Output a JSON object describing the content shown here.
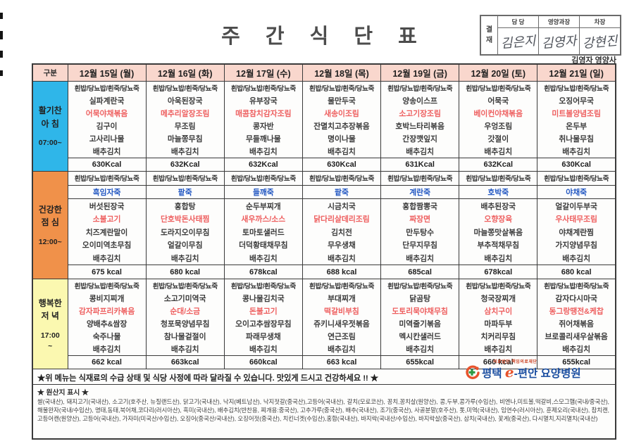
{
  "title": "주 간 식 단 표",
  "approval": {
    "stamp_label": "결재",
    "columns": [
      "담 당",
      "영양과장",
      "차장"
    ],
    "signatures": [
      "김은지",
      "김영자",
      "강현진"
    ],
    "dietitian": "김영자 영양사"
  },
  "table": {
    "corner_label": "구분",
    "day_headers": [
      "12월 15일 (월)",
      "12월 16일 (화)",
      "12월 17일 (수)",
      "12월 18일 (목)",
      "12월 19일 (금)",
      "12월 20일 (토)",
      "12월 21일 (일)"
    ],
    "rice_line": "흰밥/당뇨밥/흰죽/당뇨죽",
    "meals": [
      {
        "id": "breakfast",
        "label_lines": [
          "활기찬",
          "아 침"
        ],
        "time_lines": [
          "07:00~"
        ],
        "days": [
          {
            "items": [
              {
                "text": "실파계란국"
              },
              {
                "text": "어묵야채볶음",
                "highlight": true
              },
              {
                "text": "김구이"
              },
              {
                "text": "고사리나물"
              },
              {
                "text": "배추김치"
              }
            ],
            "kcal": "630Kcal"
          },
          {
            "items": [
              {
                "text": "아욱된장국"
              },
              {
                "text": "메추리알장조림",
                "highlight": true
              },
              {
                "text": "무조림"
              },
              {
                "text": "마늘쫑무침"
              },
              {
                "text": "배추김치"
              }
            ],
            "kcal": "632Kcal"
          },
          {
            "items": [
              {
                "text": "유부장국"
              },
              {
                "text": "매콤참치감자조림",
                "highlight": true
              },
              {
                "text": "콩자반"
              },
              {
                "text": "무들깨나물"
              },
              {
                "text": "배추김치"
              }
            ],
            "kcal": "632Kcal"
          },
          {
            "items": [
              {
                "text": "물만두국"
              },
              {
                "text": "새송이조림",
                "highlight": true
              },
              {
                "text": "잔멸치고추장볶음"
              },
              {
                "text": "명이나물"
              },
              {
                "text": "배추김치"
              }
            ],
            "kcal": "630Kcal"
          },
          {
            "items": [
              {
                "text": "양송이스프"
              },
              {
                "text": "소고기장조림",
                "highlight": true
              },
              {
                "text": "호박느타리볶음"
              },
              {
                "text": "간장깻잎지"
              },
              {
                "text": "배추김치"
              }
            ],
            "kcal": "631Kcal"
          },
          {
            "items": [
              {
                "text": "어묵국"
              },
              {
                "text": "베이컨야채볶음",
                "highlight": true
              },
              {
                "text": "우엉조림"
              },
              {
                "text": "갓절이"
              },
              {
                "text": "배추김치"
              }
            ],
            "kcal": "632Kcal"
          },
          {
            "items": [
              {
                "text": "오징어무국"
              },
              {
                "text": "미트볼양념조림",
                "highlight": true
              },
              {
                "text": "온두부"
              },
              {
                "text": "취나물무침"
              },
              {
                "text": "배추김치"
              }
            ],
            "kcal": "630Kcal"
          }
        ]
      },
      {
        "id": "lunch",
        "label_lines": [
          "건강한",
          "점 심"
        ],
        "time_lines": [
          "12:00~"
        ],
        "days": [
          {
            "porridge": "흑임자죽",
            "items": [
              {
                "text": "버섯된장국"
              },
              {
                "text": "소불고기",
                "highlight": true
              },
              {
                "text": "치즈계란말이"
              },
              {
                "text": "오이미역초무침"
              },
              {
                "text": "배추김치"
              }
            ],
            "kcal": "675 kcal"
          },
          {
            "porridge": "팥죽",
            "items": [
              {
                "text": "홍합탕"
              },
              {
                "text": "단호박돈사태찜",
                "highlight": true
              },
              {
                "text": "도라지오이무침"
              },
              {
                "text": "얼갈이무침"
              },
              {
                "text": "배추김치"
              }
            ],
            "kcal": "680 kcal"
          },
          {
            "porridge": "들깨죽",
            "items": [
              {
                "text": "순두부찌개"
              },
              {
                "text": "새우까스/소스",
                "highlight": true
              },
              {
                "text": "토마토샐러드"
              },
              {
                "text": "더덕황태채무침"
              },
              {
                "text": "배추김치"
              }
            ],
            "kcal": "678kcal"
          },
          {
            "porridge": "팥죽",
            "items": [
              {
                "text": "시금치국"
              },
              {
                "text": "닭다리살데리조림",
                "highlight": true
              },
              {
                "text": "김치전"
              },
              {
                "text": "무우생채"
              },
              {
                "text": "배추김치"
              }
            ],
            "kcal": "688 kcal"
          },
          {
            "porridge": "계란죽",
            "items": [
              {
                "text": "홍합짬뽕국"
              },
              {
                "text": "짜장면",
                "highlight": true
              },
              {
                "text": "만두탕수"
              },
              {
                "text": "단무지무침"
              },
              {
                "text": "배추김치"
              }
            ],
            "kcal": "685cal"
          },
          {
            "porridge": "호박죽",
            "items": [
              {
                "text": "배추된장국"
              },
              {
                "text": "오향장육",
                "highlight": true
              },
              {
                "text": "마늘쫑맛살볶음"
              },
              {
                "text": "부추적채무침"
              },
              {
                "text": "배추김치"
              }
            ],
            "kcal": "678kcal"
          },
          {
            "porridge": "야채죽",
            "items": [
              {
                "text": "얼갈이두부국"
              },
              {
                "text": "우사태무조림",
                "highlight": true
              },
              {
                "text": "야채계란찜"
              },
              {
                "text": "가지양념무침"
              },
              {
                "text": "배추김치"
              }
            ],
            "kcal": "680 kcal"
          }
        ]
      },
      {
        "id": "dinner",
        "label_lines": [
          "행복한",
          "저 녁"
        ],
        "time_lines": [
          "17:00",
          "~"
        ],
        "days": [
          {
            "items": [
              {
                "text": "콩비지찌개"
              },
              {
                "text": "감자파프리카볶음",
                "highlight": true
              },
              {
                "text": "양배추&쌈장"
              },
              {
                "text": "숙주나물"
              },
              {
                "text": "배추김치"
              }
            ],
            "kcal": "662 kcal"
          },
          {
            "items": [
              {
                "text": "소고기미역국"
              },
              {
                "text": "순대/소금",
                "highlight": true
              },
              {
                "text": "청포묵양념무침"
              },
              {
                "text": "참나물겉절이"
              },
              {
                "text": "배추김치"
              }
            ],
            "kcal": "663kcal"
          },
          {
            "items": [
              {
                "text": "콩나물김치국"
              },
              {
                "text": "돈불고기",
                "highlight": true
              },
              {
                "text": "오이고추쌈장무침"
              },
              {
                "text": "파래무생채"
              },
              {
                "text": "배추김치"
              }
            ],
            "kcal": "660kcal"
          },
          {
            "items": [
              {
                "text": "부대찌개"
              },
              {
                "text": "떡갈비부침",
                "highlight": true
              },
              {
                "text": "쥬키니새우젓볶음"
              },
              {
                "text": "연근조림"
              },
              {
                "text": "배추김치"
              }
            ],
            "kcal": "663 kcal"
          },
          {
            "items": [
              {
                "text": "닭곰탕"
              },
              {
                "text": "도토리묵야채무침",
                "highlight": true
              },
              {
                "text": "미역줄기볶음"
              },
              {
                "text": "멕시칸샐러드"
              },
              {
                "text": "배추김치"
              }
            ],
            "kcal": "655kcal"
          },
          {
            "items": [
              {
                "text": "청국장찌개"
              },
              {
                "text": "삼치구이",
                "highlight": true
              },
              {
                "text": "마파두부"
              },
              {
                "text": "치커리무침"
              },
              {
                "text": "배추김치"
              }
            ],
            "kcal": "660 kcal"
          },
          {
            "items": [
              {
                "text": "감자다시마국"
              },
              {
                "text": "동그랑땡전&케찹",
                "highlight": true
              },
              {
                "text": "쥐어채볶음"
              },
              {
                "text": "브로콜리새우살볶음"
              },
              {
                "text": "배추김치"
              }
            ],
            "kcal": "655kcal"
          }
        ]
      }
    ]
  },
  "note": "★위 메뉴는 식재료의 수급 상태 및 식당 사정에 따라 달라질 수 있습니다. 맛있게 드시고 건강하세요 !! ★",
  "origin": {
    "heading": "★ 원산지 표시 ★",
    "text": "쌀(국내산), 돼지고기(국내산), 소고기(호주산, 뉴질랜드산), 닭고기(국내산), 낙지(베트남산), 낙지젓갈(중국산),고등어(국내산), 갈치(모로코산), 꽁치,꽁치살(원양산), 콩,두부,콩가루(수입산), 비엔나,미트볼,떡갈비,스모그햄(국내/중국산), 해물완자(국내/수입산), 명태,동태,북어채,코다리(러시아산), 흑미(국내산), 배추김치(반찬용, 찌개용:중국산), 고추가루(중국산), 배추(국내산), 조기(중국산), 사골분말(호주산), 톳,미역(국내산), 임연수(러시아산), 훈제오리(국내산), 참치캔,고등어캔(원양산), 고등어(국내산), 가자미(미국산/수입산), 오징어(중국산/국내산), 오징어젓(중국산), 치킨너겟(수입산),홍합(국내산), 바지락(국내산/수입산), 바지락살(중국산), 삼치(국내산), 꽃게(중국산), 다시멸치,지리멸치(국내산)"
  },
  "logo": {
    "top_text": "의료법인 책임의료재단",
    "prefix": "평택 ",
    "e": "e",
    "suffix": "-편안 요양병원"
  },
  "colors": {
    "header_bg": "#f9d7cd",
    "breakfast_bg": "#2fb6e9",
    "lunch_bg": "#f0914a",
    "dinner_bg": "#fbf8b0",
    "highlight_red": "#ee5f5f",
    "porridge_blue": "#2257c2"
  }
}
